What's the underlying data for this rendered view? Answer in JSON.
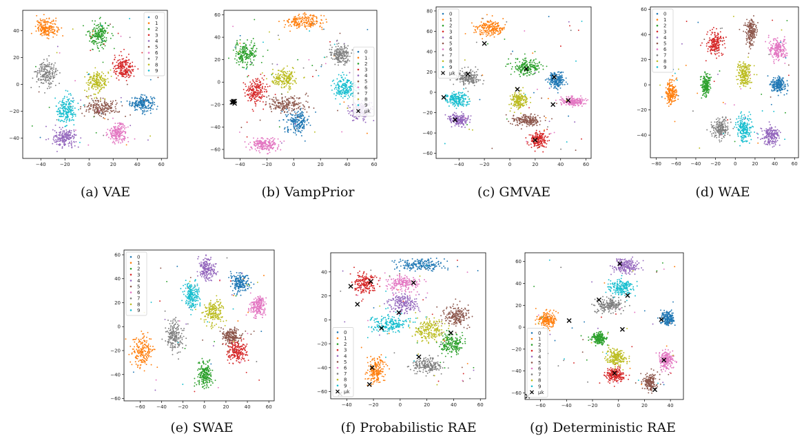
{
  "chart_data": [
    {
      "type": "scatter",
      "caption": "(a) VAE",
      "xlim": [
        -55,
        65
      ],
      "ylim": [
        -55,
        55
      ],
      "xticks": [
        -40,
        -20,
        0,
        20,
        40,
        60
      ],
      "yticks": [
        -40,
        -20,
        0,
        20,
        40
      ],
      "legend": [
        "0",
        "1",
        "2",
        "3",
        "4",
        "5",
        "6",
        "7",
        "8",
        "9"
      ],
      "legend_position": "upper-right",
      "clusters": [
        {
          "label": "0",
          "center": [
            44,
            -14
          ],
          "spread": [
            9,
            5
          ]
        },
        {
          "label": "1",
          "center": [
            -35,
            42
          ],
          "spread": [
            8,
            6
          ]
        },
        {
          "label": "2",
          "center": [
            8,
            37
          ],
          "spread": [
            8,
            9
          ]
        },
        {
          "label": "3",
          "center": [
            29,
            12
          ],
          "spread": [
            8,
            8
          ]
        },
        {
          "label": "4",
          "center": [
            -20,
            -40
          ],
          "spread": [
            9,
            6
          ]
        },
        {
          "label": "5",
          "center": [
            10,
            -17
          ],
          "spread": [
            13,
            6
          ]
        },
        {
          "label": "6",
          "center": [
            24,
            -36
          ],
          "spread": [
            7,
            6
          ]
        },
        {
          "label": "7",
          "center": [
            -35,
            8
          ],
          "spread": [
            8,
            8
          ]
        },
        {
          "label": "8",
          "center": [
            7,
            2
          ],
          "spread": [
            8,
            8
          ]
        },
        {
          "label": "9",
          "center": [
            -19,
            -19
          ],
          "spread": [
            7,
            9
          ]
        }
      ],
      "centroids": []
    },
    {
      "type": "scatter",
      "caption": "(b) VampPrior",
      "xlim": [
        -52,
        62
      ],
      "ylim": [
        -68,
        64
      ],
      "xticks": [
        -40,
        -20,
        0,
        20,
        40,
        60
      ],
      "yticks": [
        -60,
        -40,
        -20,
        0,
        20,
        40,
        60
      ],
      "legend": [
        "0",
        "1",
        "2",
        "3",
        "4",
        "5",
        "6",
        "7",
        "8",
        "9",
        "μk"
      ],
      "legend_position": "right",
      "clusters": [
        {
          "label": "0",
          "center": [
            3,
            -35
          ],
          "spread": [
            8,
            9
          ]
        },
        {
          "label": "1",
          "center": [
            7,
            54
          ],
          "spread": [
            13,
            6
          ]
        },
        {
          "label": "2",
          "center": [
            -36,
            25
          ],
          "spread": [
            8,
            10
          ]
        },
        {
          "label": "3",
          "center": [
            -28,
            -8
          ],
          "spread": [
            7,
            10
          ]
        },
        {
          "label": "4",
          "center": [
            50,
            -25
          ],
          "spread": [
            7,
            7
          ]
        },
        {
          "label": "5",
          "center": [
            -5,
            -20
          ],
          "spread": [
            13,
            7
          ]
        },
        {
          "label": "6",
          "center": [
            -22,
            -56
          ],
          "spread": [
            10,
            6
          ]
        },
        {
          "label": "7",
          "center": [
            35,
            25
          ],
          "spread": [
            7,
            8
          ]
        },
        {
          "label": "8",
          "center": [
            -7,
            3
          ],
          "spread": [
            9,
            8
          ]
        },
        {
          "label": "9",
          "center": [
            38,
            -5
          ],
          "spread": [
            7,
            9
          ]
        }
      ],
      "centroids": [
        [
          -45,
          -18
        ],
        [
          -44,
          -17
        ],
        [
          -45,
          -17
        ],
        [
          -44,
          -19
        ],
        [
          -46,
          -18
        ]
      ]
    },
    {
      "type": "scatter",
      "caption": "(c) GMVAE",
      "xlim": [
        -58,
        64
      ],
      "ylim": [
        -65,
        84
      ],
      "xticks": [
        -40,
        -20,
        0,
        20,
        40,
        60
      ],
      "yticks": [
        -60,
        -40,
        -20,
        0,
        20,
        40,
        60,
        80
      ],
      "legend": [
        "0",
        "1",
        "2",
        "3",
        "4",
        "5",
        "6",
        "7",
        "8",
        "9",
        "μk"
      ],
      "legend_position": "upper-left",
      "clusters": [
        {
          "label": "0",
          "center": [
            37,
            12
          ],
          "spread": [
            6,
            7
          ]
        },
        {
          "label": "1",
          "center": [
            -15,
            63
          ],
          "spread": [
            10,
            7
          ]
        },
        {
          "label": "2",
          "center": [
            13,
            25
          ],
          "spread": [
            10,
            7
          ]
        },
        {
          "label": "3",
          "center": [
            22,
            -47
          ],
          "spread": [
            6,
            7
          ]
        },
        {
          "label": "4",
          "center": [
            -40,
            -27
          ],
          "spread": [
            7,
            5
          ]
        },
        {
          "label": "5",
          "center": [
            13,
            -28
          ],
          "spread": [
            11,
            5
          ]
        },
        {
          "label": "6",
          "center": [
            50,
            -9
          ],
          "spread": [
            8,
            4
          ]
        },
        {
          "label": "7",
          "center": [
            -33,
            14
          ],
          "spread": [
            9,
            7
          ]
        },
        {
          "label": "8",
          "center": [
            7,
            -8
          ],
          "spread": [
            6,
            8
          ]
        },
        {
          "label": "9",
          "center": [
            -42,
            -7
          ],
          "spread": [
            8,
            6
          ]
        }
      ],
      "centroids": [
        [
          -20,
          48
        ],
        [
          -33,
          18
        ],
        [
          -52,
          -5
        ],
        [
          -43,
          -27
        ],
        [
          6,
          3
        ],
        [
          13,
          23
        ],
        [
          35,
          15
        ],
        [
          46,
          -8
        ],
        [
          34,
          -12
        ],
        [
          20,
          -47
        ]
      ]
    },
    {
      "type": "scatter",
      "caption": "(d) WAE",
      "xlim": [
        -86,
        64
      ],
      "ylim": [
        -58,
        62
      ],
      "xticks": [
        -80,
        -60,
        -40,
        -20,
        0,
        20,
        40,
        60
      ],
      "yticks": [
        -40,
        -20,
        0,
        20,
        40,
        60
      ],
      "legend": [
        "0",
        "1",
        "2",
        "3",
        "4",
        "5",
        "6",
        "7",
        "8",
        "9"
      ],
      "legend_position": "upper-left",
      "clusters": [
        {
          "label": "0",
          "center": [
            44,
            0
          ],
          "spread": [
            7,
            6
          ]
        },
        {
          "label": "1",
          "center": [
            -65,
            -6
          ],
          "spread": [
            5,
            9
          ]
        },
        {
          "label": "2",
          "center": [
            -30,
            0
          ],
          "spread": [
            4,
            8
          ]
        },
        {
          "label": "3",
          "center": [
            -21,
            33
          ],
          "spread": [
            8,
            8
          ]
        },
        {
          "label": "4",
          "center": [
            36,
            -40
          ],
          "spread": [
            8,
            7
          ]
        },
        {
          "label": "5",
          "center": [
            16,
            42
          ],
          "spread": [
            5,
            10
          ]
        },
        {
          "label": "6",
          "center": [
            43,
            28
          ],
          "spread": [
            8,
            8
          ]
        },
        {
          "label": "7",
          "center": [
            -15,
            -35
          ],
          "spread": [
            8,
            8
          ]
        },
        {
          "label": "8",
          "center": [
            9,
            8
          ],
          "spread": [
            6,
            9
          ]
        },
        {
          "label": "9",
          "center": [
            9,
            -35
          ],
          "spread": [
            7,
            10
          ]
        }
      ],
      "centroids": []
    },
    {
      "type": "scatter",
      "caption": "(e) SWAE",
      "xlim": [
        -75,
        65
      ],
      "ylim": [
        -62,
        64
      ],
      "xticks": [
        -60,
        -40,
        -20,
        0,
        20,
        40,
        60
      ],
      "yticks": [
        -60,
        -40,
        -20,
        0,
        20,
        40,
        60
      ],
      "legend": [
        "0",
        "1",
        "2",
        "3",
        "4",
        "5",
        "6",
        "7",
        "8",
        "9"
      ],
      "legend_position": "upper-left",
      "clusters": [
        {
          "label": "0",
          "center": [
            33,
            37
          ],
          "spread": [
            7,
            7
          ]
        },
        {
          "label": "1",
          "center": [
            -58,
            -20
          ],
          "spread": [
            9,
            12
          ]
        },
        {
          "label": "2",
          "center": [
            0,
            -40
          ],
          "spread": [
            6,
            10
          ]
        },
        {
          "label": "3",
          "center": [
            30,
            -20
          ],
          "spread": [
            9,
            8
          ]
        },
        {
          "label": "4",
          "center": [
            2,
            48
          ],
          "spread": [
            7,
            8
          ]
        },
        {
          "label": "5",
          "center": [
            25,
            -8
          ],
          "spread": [
            8,
            6
          ]
        },
        {
          "label": "6",
          "center": [
            50,
            17
          ],
          "spread": [
            6,
            8
          ]
        },
        {
          "label": "7",
          "center": [
            -28,
            -8
          ],
          "spread": [
            7,
            12
          ]
        },
        {
          "label": "8",
          "center": [
            8,
            12
          ],
          "spread": [
            9,
            9
          ]
        },
        {
          "label": "9",
          "center": [
            -12,
            26
          ],
          "spread": [
            7,
            9
          ]
        }
      ],
      "centroids": []
    },
    {
      "type": "scatter",
      "caption": "(f) Probabilistic RAE",
      "xlim": [
        -52,
        64
      ],
      "ylim": [
        -66,
        56
      ],
      "xticks": [
        -40,
        -20,
        0,
        20,
        40,
        60
      ],
      "yticks": [
        -60,
        -40,
        -20,
        0,
        20,
        40
      ],
      "legend": [
        "0",
        "1",
        "2",
        "3",
        "4",
        "5",
        "6",
        "7",
        "8",
        "9",
        "μk"
      ],
      "legend_position": "lower-left",
      "clusters": [
        {
          "label": "0",
          "center": [
            15,
            46
          ],
          "spread": [
            16,
            5
          ]
        },
        {
          "label": "1",
          "center": [
            -18,
            -43
          ],
          "spread": [
            6,
            10
          ]
        },
        {
          "label": "2",
          "center": [
            38,
            -20
          ],
          "spread": [
            8,
            8
          ]
        },
        {
          "label": "3",
          "center": [
            -27,
            30
          ],
          "spread": [
            8,
            8
          ]
        },
        {
          "label": "4",
          "center": [
            2,
            14
          ],
          "spread": [
            10,
            7
          ]
        },
        {
          "label": "5",
          "center": [
            42,
            3
          ],
          "spread": [
            9,
            8
          ]
        },
        {
          "label": "6",
          "center": [
            2,
            30
          ],
          "spread": [
            12,
            6
          ]
        },
        {
          "label": "7",
          "center": [
            20,
            -38
          ],
          "spread": [
            11,
            6
          ]
        },
        {
          "label": "8",
          "center": [
            22,
            -8
          ],
          "spread": [
            10,
            8
          ]
        },
        {
          "label": "9",
          "center": [
            -8,
            -3
          ],
          "spread": [
            13,
            7
          ]
        }
      ],
      "centroids": [
        [
          -37,
          28
        ],
        [
          -22,
          32
        ],
        [
          10,
          31
        ],
        [
          -32,
          13
        ],
        [
          -1,
          6
        ],
        [
          -14,
          -7
        ],
        [
          38,
          -11
        ],
        [
          14,
          -31
        ],
        [
          -21,
          -40
        ],
        [
          -23,
          -54
        ],
        [
          -45,
          -62
        ]
      ]
    },
    {
      "type": "scatter",
      "caption": "(g) Deterministic RAE",
      "xlim": [
        -72,
        50
      ],
      "ylim": [
        -66,
        68
      ],
      "xticks": [
        -60,
        -40,
        -20,
        0,
        20,
        40
      ],
      "yticks": [
        -60,
        -40,
        -20,
        0,
        20,
        40,
        60
      ],
      "legend": [
        "0",
        "1",
        "2",
        "3",
        "4",
        "5",
        "6",
        "7",
        "8",
        "9",
        "μk"
      ],
      "legend_position": "lower-left",
      "clusters": [
        {
          "label": "0",
          "center": [
            38,
            8
          ],
          "spread": [
            5,
            6
          ]
        },
        {
          "label": "1",
          "center": [
            -55,
            7
          ],
          "spread": [
            6,
            6
          ]
        },
        {
          "label": "2",
          "center": [
            -15,
            -10
          ],
          "spread": [
            5,
            5
          ]
        },
        {
          "label": "3",
          "center": [
            -3,
            -44
          ],
          "spread": [
            7,
            6
          ]
        },
        {
          "label": "4",
          "center": [
            6,
            56
          ],
          "spread": [
            8,
            6
          ]
        },
        {
          "label": "5",
          "center": [
            24,
            -50
          ],
          "spread": [
            5,
            7
          ]
        },
        {
          "label": "6",
          "center": [
            37,
            -30
          ],
          "spread": [
            5,
            8
          ]
        },
        {
          "label": "7",
          "center": [
            -7,
            20
          ],
          "spread": [
            10,
            6
          ]
        },
        {
          "label": "8",
          "center": [
            -2,
            -27
          ],
          "spread": [
            7,
            7
          ]
        },
        {
          "label": "9",
          "center": [
            2,
            36
          ],
          "spread": [
            9,
            7
          ]
        }
      ],
      "centroids": [
        [
          1,
          58
        ],
        [
          7,
          29
        ],
        [
          -15,
          25
        ],
        [
          3,
          -2
        ],
        [
          -38,
          6
        ],
        [
          33,
          7
        ],
        [
          35,
          -30
        ],
        [
          -3,
          -42
        ],
        [
          28,
          -57
        ],
        [
          -70,
          -63
        ]
      ]
    }
  ],
  "palette": [
    "#1f77b4",
    "#ff7f0e",
    "#2ca02c",
    "#d62728",
    "#9467bd",
    "#8c564b",
    "#e377c2",
    "#7f7f7f",
    "#bcbd22",
    "#17becf"
  ],
  "centroid_label": "μk"
}
